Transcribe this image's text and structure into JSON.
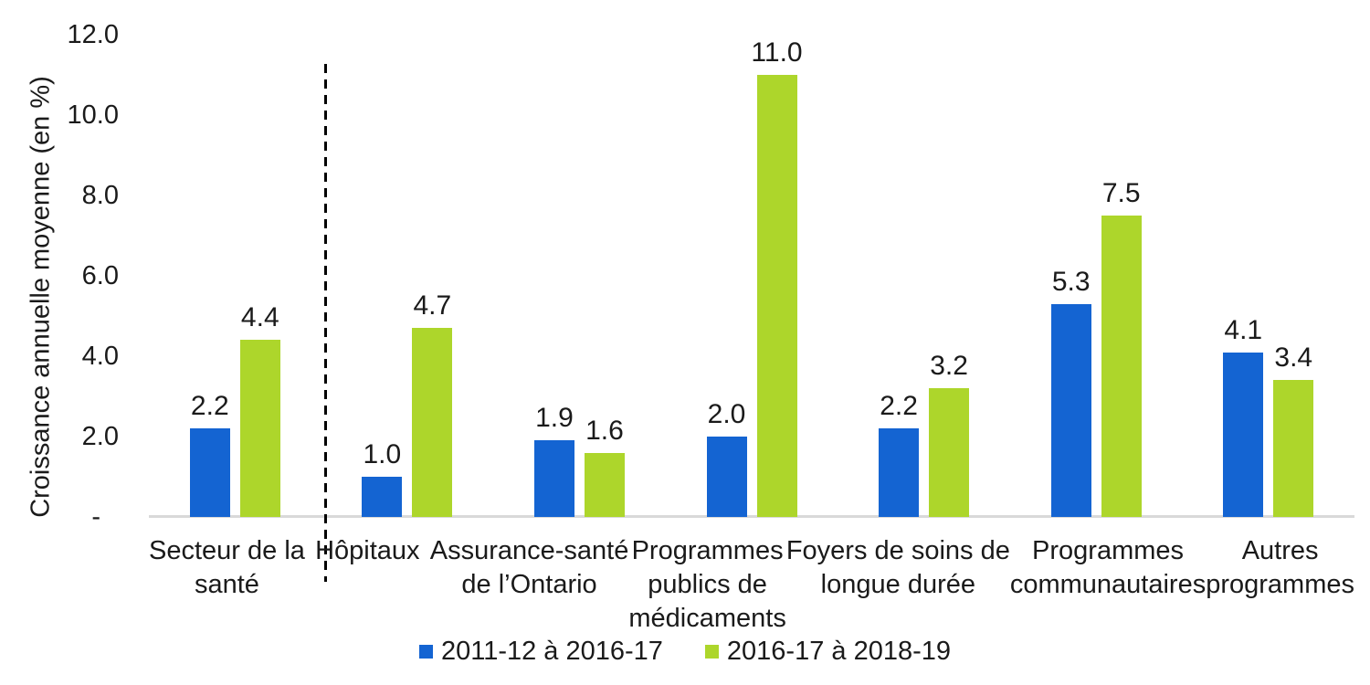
{
  "chart_data": {
    "type": "bar",
    "title": "",
    "ylabel": "Croissance annuelle moyenne (en %)",
    "xlabel": "",
    "ylim": [
      0,
      12
    ],
    "grid": false,
    "legend_position": "bottom",
    "y_ticks": [
      {
        "value": 12,
        "label": "12.0"
      },
      {
        "value": 10,
        "label": "10.0"
      },
      {
        "value": 8,
        "label": "8.0"
      },
      {
        "value": 6,
        "label": "6.0"
      },
      {
        "value": 4,
        "label": "4.0"
      },
      {
        "value": 2,
        "label": "2.0"
      },
      {
        "value": 0,
        "label": "-",
        "accounting_zero": true
      }
    ],
    "categories": [
      {
        "label": "Secteur de la santé",
        "lines": [
          "Secteur de la",
          "santé"
        ]
      },
      {
        "label": "Hôpitaux",
        "lines": [
          "Hôpitaux"
        ]
      },
      {
        "label": "Assurance-santé de l’Ontario",
        "lines": [
          "Assurance-santé",
          "de l’Ontario"
        ]
      },
      {
        "label": "Programmes publics de médicaments",
        "lines": [
          "Programmes",
          "publics de",
          "médicaments"
        ]
      },
      {
        "label": "Foyers de soins de longue durée",
        "lines": [
          "Foyers de soins de",
          "longue durée"
        ]
      },
      {
        "label": "Programmes communautaires",
        "lines": [
          "Programmes",
          "communautaires"
        ]
      },
      {
        "label": "Autres programmes",
        "lines": [
          "Autres",
          "programmes"
        ]
      }
    ],
    "series": [
      {
        "name": "2011-12 à 2016-17",
        "color": "#1464d2",
        "values": [
          2.2,
          1.0,
          1.9,
          2.0,
          2.2,
          5.3,
          4.1
        ],
        "labels": [
          "2.2",
          "1.0",
          "1.9",
          "2.0",
          "2.2",
          "5.3",
          "4.1"
        ]
      },
      {
        "name": "2016-17 à 2018-19",
        "color": "#add62b",
        "values": [
          4.4,
          4.7,
          1.6,
          11.0,
          3.2,
          7.5,
          3.4
        ],
        "labels": [
          "4.4",
          "4.7",
          "1.6",
          "11.0",
          "3.2",
          "7.5",
          "3.4"
        ]
      }
    ],
    "separator": {
      "after_category_index": 0,
      "style": "dashed",
      "color": "#000000"
    }
  },
  "colors": {
    "background": "#ffffff",
    "axis_line": "#d9d9d9",
    "text": "#1a1a1a"
  }
}
